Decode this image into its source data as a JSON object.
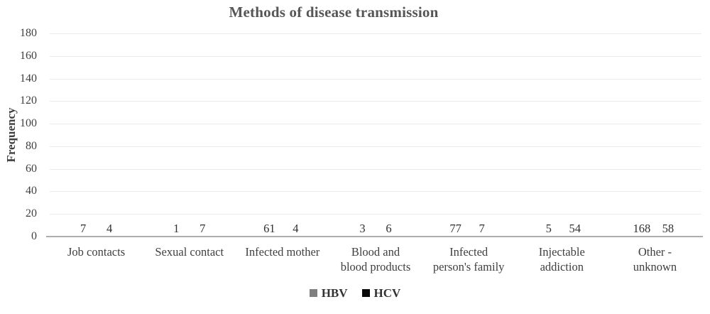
{
  "chart_data": {
    "type": "bar",
    "title": "Methods of disease transmission",
    "xlabel": "",
    "ylabel": "Frequency",
    "categories": [
      "Job contacts",
      "Sexual contact",
      "Infected mother",
      "Blood and blood products",
      "Infected person's family",
      "Injectable addiction",
      "Other - unknown"
    ],
    "category_label_lines": [
      [
        "Job contacts"
      ],
      [
        "Sexual contact"
      ],
      [
        "Infected mother"
      ],
      [
        "Blood and",
        "blood products"
      ],
      [
        "Infected",
        "person's family"
      ],
      [
        "Injectable",
        "addiction"
      ],
      [
        "Other -",
        "unknown"
      ]
    ],
    "series": [
      {
        "name": "HBV",
        "color": "#7f7f7f",
        "values": [
          7,
          1,
          61,
          3,
          77,
          5,
          168
        ]
      },
      {
        "name": "HCV",
        "color": "#0a0a0a",
        "values": [
          4,
          7,
          4,
          6,
          7,
          54,
          58
        ]
      }
    ],
    "ylim": [
      0,
      180
    ],
    "yticks": [
      0,
      20,
      40,
      60,
      80,
      100,
      120,
      140,
      160,
      180
    ],
    "grid": true,
    "legend_position": "bottom",
    "colors": {
      "grid_line": "#ebebeb",
      "axis_line": "#adadad",
      "title_text": "#565656",
      "tick_text": "#3f3f3f",
      "data_label_text": "#303030",
      "background": "#ffffff"
    }
  }
}
